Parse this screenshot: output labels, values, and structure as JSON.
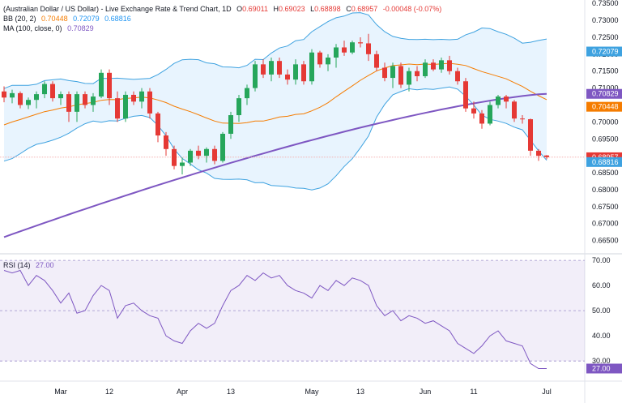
{
  "header": {
    "title": "(Australian Dollar / US Dollar) - Live Exchange Rate & Trend Chart, 1D",
    "ohlc": [
      {
        "key": "O",
        "value": "0.69011"
      },
      {
        "key": "H",
        "value": "0.69023"
      },
      {
        "key": "L",
        "value": "0.68898"
      },
      {
        "key": "C",
        "value": "0.68957"
      }
    ],
    "change": "-0.00048 (-0.07%)",
    "bb_label": "BB (20, 2)",
    "bb_values": [
      "0.70448",
      "0.72079",
      "0.68816"
    ],
    "ma_label": "MA (100, close, 0)",
    "ma_value": "0.70829",
    "rsi_label": "RSI (14)",
    "rsi_value": "27.00"
  },
  "colors": {
    "up": "#26a65b",
    "down": "#e53935",
    "bb_basis": "#f57c00",
    "bb_band": "#3ea2e0",
    "ma": "#7e57c2",
    "rsi": "#7e57c2"
  },
  "chart_data": [
    {
      "type": "candlestick",
      "y_ticks": [
        "0.73500",
        "0.73000",
        "0.72500",
        "0.72000",
        "0.71500",
        "0.71000",
        "0.70500",
        "0.70000",
        "0.69500",
        "0.69000",
        "0.68500",
        "0.68000",
        "0.67500",
        "0.67000",
        "0.66500"
      ],
      "ylim": [
        0.6625,
        0.736
      ],
      "x_ticks": [
        {
          "label": "Mar",
          "i": 7
        },
        {
          "label": "12",
          "i": 13
        },
        {
          "label": "Apr",
          "i": 22
        },
        {
          "label": "13",
          "i": 28
        },
        {
          "label": "May",
          "i": 38
        },
        {
          "label": "13",
          "i": 44
        },
        {
          "label": "Jun",
          "i": 52
        },
        {
          "label": "11",
          "i": 58
        },
        {
          "label": "Jul",
          "i": 67
        }
      ],
      "candles": [
        [
          0.709,
          0.7105,
          0.7058,
          0.7072
        ],
        [
          0.7072,
          0.7095,
          0.7055,
          0.7085
        ],
        [
          0.7085,
          0.709,
          0.704,
          0.705
        ],
        [
          0.705,
          0.7072,
          0.7038,
          0.7065
        ],
        [
          0.7065,
          0.709,
          0.704,
          0.7082
        ],
        [
          0.7082,
          0.712,
          0.707,
          0.7112
        ],
        [
          0.7112,
          0.712,
          0.706,
          0.707
        ],
        [
          0.707,
          0.709,
          0.705,
          0.7082
        ],
        [
          0.7082,
          0.709,
          0.7,
          0.703
        ],
        [
          0.703,
          0.709,
          0.7,
          0.7082
        ],
        [
          0.7082,
          0.709,
          0.704,
          0.705
        ],
        [
          0.705,
          0.7085,
          0.703,
          0.7075
        ],
        [
          0.7075,
          0.7155,
          0.707,
          0.7145
        ],
        [
          0.7145,
          0.7155,
          0.705,
          0.707
        ],
        [
          0.707,
          0.709,
          0.7,
          0.701
        ],
        [
          0.701,
          0.709,
          0.7,
          0.708
        ],
        [
          0.708,
          0.709,
          0.705,
          0.706
        ],
        [
          0.706,
          0.71,
          0.704,
          0.709
        ],
        [
          0.709,
          0.71,
          0.701,
          0.7025
        ],
        [
          0.7025,
          0.703,
          0.694,
          0.696
        ],
        [
          0.696,
          0.697,
          0.69,
          0.692
        ],
        [
          0.692,
          0.693,
          0.686,
          0.687
        ],
        [
          0.687,
          0.6895,
          0.6845,
          0.688
        ],
        [
          0.688,
          0.692,
          0.687,
          0.6915
        ],
        [
          0.6915,
          0.693,
          0.689,
          0.69
        ],
        [
          0.69,
          0.6925,
          0.688,
          0.692
        ],
        [
          0.692,
          0.693,
          0.6875,
          0.6885
        ],
        [
          0.6885,
          0.697,
          0.688,
          0.6965
        ],
        [
          0.6965,
          0.703,
          0.695,
          0.702
        ],
        [
          0.702,
          0.708,
          0.7,
          0.707
        ],
        [
          0.707,
          0.711,
          0.705,
          0.71
        ],
        [
          0.71,
          0.718,
          0.709,
          0.717
        ],
        [
          0.717,
          0.7185,
          0.713,
          0.714
        ],
        [
          0.714,
          0.719,
          0.712,
          0.718
        ],
        [
          0.718,
          0.719,
          0.713,
          0.714
        ],
        [
          0.714,
          0.7155,
          0.711,
          0.7125
        ],
        [
          0.7125,
          0.7185,
          0.711,
          0.717
        ],
        [
          0.717,
          0.718,
          0.711,
          0.712
        ],
        [
          0.712,
          0.7215,
          0.711,
          0.7205
        ],
        [
          0.7205,
          0.721,
          0.716,
          0.717
        ],
        [
          0.717,
          0.72,
          0.715,
          0.719
        ],
        [
          0.719,
          0.723,
          0.716,
          0.722
        ],
        [
          0.722,
          0.724,
          0.7195,
          0.7205
        ],
        [
          0.7205,
          0.724,
          0.72,
          0.7235
        ],
        [
          0.7235,
          0.725,
          0.722,
          0.7232
        ],
        [
          0.7232,
          0.726,
          0.718,
          0.72
        ],
        [
          0.72,
          0.721,
          0.715,
          0.716
        ],
        [
          0.716,
          0.7175,
          0.712,
          0.713
        ],
        [
          0.713,
          0.7175,
          0.71,
          0.7165
        ],
        [
          0.7165,
          0.7175,
          0.71,
          0.711
        ],
        [
          0.711,
          0.716,
          0.709,
          0.715
        ],
        [
          0.715,
          0.7165,
          0.712,
          0.7135
        ],
        [
          0.7135,
          0.7185,
          0.713,
          0.7175
        ],
        [
          0.7175,
          0.7185,
          0.715,
          0.7155
        ],
        [
          0.7155,
          0.719,
          0.7145,
          0.7182
        ],
        [
          0.7182,
          0.7195,
          0.714,
          0.715
        ],
        [
          0.715,
          0.716,
          0.711,
          0.712
        ],
        [
          0.712,
          0.713,
          0.703,
          0.704
        ],
        [
          0.704,
          0.706,
          0.701,
          0.7025
        ],
        [
          0.7025,
          0.7035,
          0.698,
          0.6995
        ],
        [
          0.6995,
          0.706,
          0.699,
          0.705
        ],
        [
          0.705,
          0.708,
          0.704,
          0.7075
        ],
        [
          0.7075,
          0.708,
          0.704,
          0.706
        ],
        [
          0.706,
          0.7065,
          0.7,
          0.701
        ],
        [
          0.701,
          0.702,
          0.6995,
          0.7008
        ],
        [
          0.7008,
          0.701,
          0.69,
          0.6915
        ],
        [
          0.6915,
          0.692,
          0.6885,
          0.69
        ],
        [
          0.6901,
          0.6902,
          0.689,
          0.6896
        ]
      ]
    },
    {
      "type": "line",
      "y_ticks": [
        "70.00",
        "60.00",
        "50.00",
        "40.00",
        "30.00"
      ],
      "ylim": [
        22,
        71
      ],
      "overbought": 70,
      "oversold": 30,
      "rsi": [
        66,
        65,
        66,
        60,
        64,
        62,
        58,
        53,
        57,
        49,
        50,
        56,
        60,
        58,
        47,
        52,
        53,
        50,
        48,
        47,
        40,
        38,
        37,
        42,
        45,
        43,
        45,
        52,
        58,
        60,
        64,
        62,
        65,
        63,
        64,
        60,
        58,
        57,
        55,
        60,
        58,
        62,
        60,
        63,
        62,
        60,
        52,
        48,
        50,
        46,
        48,
        47,
        45,
        46,
        44,
        42,
        37,
        35,
        33,
        36,
        40,
        42,
        38,
        37,
        36,
        29,
        27,
        27
      ]
    }
  ]
}
